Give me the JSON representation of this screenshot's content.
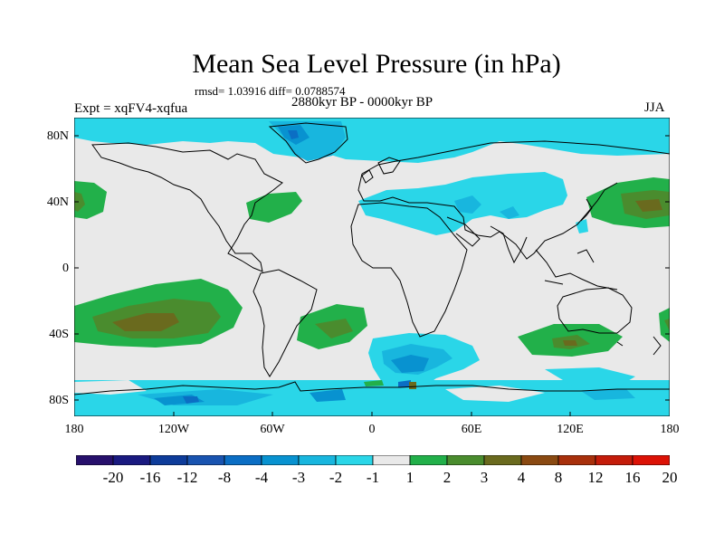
{
  "title": "Mean Sea Level Pressure (in hPa)",
  "stats": "rmsd= 1.03916 diff= 0.0788574",
  "experiment": "Expt = xqFV4-xqfua",
  "period": "2880kyr BP - 0000kyr BP",
  "season": "JJA",
  "map": {
    "projection": "cylindrical equidistant",
    "lon_range": [
      -180,
      180
    ],
    "lat_range": [
      -90,
      90
    ],
    "lat_labels": [
      "80N",
      "40N",
      "0",
      "40S",
      "80S"
    ],
    "lon_labels": [
      "180",
      "120W",
      "60W",
      "0",
      "60E",
      "120E",
      "180"
    ],
    "background_color": "#e9e9e9",
    "coast_color": "#000000"
  },
  "colorbar": {
    "labels": [
      "-20",
      "-16",
      "-12",
      "-8",
      "-4",
      "-3",
      "-2",
      "-1",
      "1",
      "2",
      "3",
      "4",
      "8",
      "12",
      "16",
      "20"
    ],
    "colors": [
      "#27106c",
      "#1a1a80",
      "#0e3c9a",
      "#1954b0",
      "#0b6ec4",
      "#0892d0",
      "#18b6de",
      "#2ad6e8",
      "#e9e9e9",
      "#22b04a",
      "#4a8c2e",
      "#6a6a1e",
      "#8a4a12",
      "#a8300c",
      "#c41c0a",
      "#dc1206"
    ]
  }
}
